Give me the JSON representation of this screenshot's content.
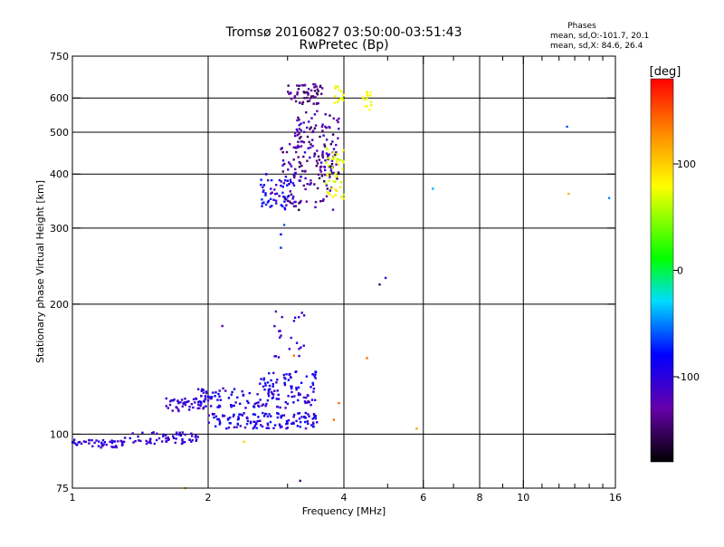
{
  "chart_data": {
    "type": "scatter",
    "title": "Tromsø 20160827 03:50:00-03:51:43",
    "subtitle": "RwPretec (Bp)",
    "xlabel": "Frequency [MHz]",
    "ylabel": "Stationary phase Virtual Height [km]",
    "x_scale": "log",
    "y_scale": "log",
    "xlim": [
      1,
      16
    ],
    "ylim": [
      75,
      750
    ],
    "x_ticks": [
      1,
      2,
      4,
      6,
      8,
      10,
      16
    ],
    "x_minor_ticks": [
      3,
      5,
      7,
      9,
      11,
      12,
      13,
      14,
      15
    ],
    "y_ticks": [
      75,
      100,
      200,
      300,
      400,
      500,
      600,
      750
    ],
    "x_gridlines": [
      2,
      4,
      6,
      8,
      10
    ],
    "y_gridlines": [
      100,
      200,
      300,
      400,
      500,
      600
    ],
    "phase_info": {
      "heading": "Phases",
      "line_o": "mean, sd,O:-101.7, 20.1",
      "line_x": "mean, sd,X: 84.6, 26.4"
    },
    "colorbar": {
      "label": "[deg]",
      "ticks": [
        100,
        0,
        -100
      ],
      "range": [
        -180,
        180
      ]
    },
    "clusters": [
      {
        "x": [
          1.0,
          1.3
        ],
        "y": [
          93,
          97
        ],
        "phase": [
          -120,
          -90
        ],
        "n": 45
      },
      {
        "x": [
          1.3,
          1.9
        ],
        "y": [
          95,
          101
        ],
        "phase": [
          -120,
          -90
        ],
        "n": 60
      },
      {
        "x": [
          1.6,
          2.0
        ],
        "y": [
          113,
          121
        ],
        "phase": [
          -120,
          -95
        ],
        "n": 45
      },
      {
        "x": [
          2.0,
          3.5
        ],
        "y": [
          103,
          112
        ],
        "phase": [
          -120,
          -70
        ],
        "n": 130
      },
      {
        "x": [
          1.9,
          3.5
        ],
        "y": [
          115,
          128
        ],
        "phase": [
          -120,
          -80
        ],
        "n": 120
      },
      {
        "x": [
          2.6,
          3.5
        ],
        "y": [
          128,
          140
        ],
        "phase": [
          -110,
          -70
        ],
        "n": 45
      },
      {
        "x": [
          2.8,
          3.3
        ],
        "y": [
          150,
          195
        ],
        "phase": [
          -120,
          -100
        ],
        "n": 22
      },
      {
        "x": [
          2.6,
          3.1
        ],
        "y": [
          330,
          400
        ],
        "phase": [
          -120,
          -70
        ],
        "n": 60
      },
      {
        "x": [
          2.9,
          3.8
        ],
        "y": [
          330,
          470
        ],
        "phase": [
          -160,
          -100
        ],
        "n": 90
      },
      {
        "x": [
          3.0,
          3.6
        ],
        "y": [
          580,
          650
        ],
        "phase": [
          -160,
          -120
        ],
        "n": 55
      },
      {
        "x": [
          3.1,
          3.9
        ],
        "y": [
          390,
          560
        ],
        "phase": [
          -160,
          -100
        ],
        "n": 110
      },
      {
        "x": [
          3.65,
          4.0
        ],
        "y": [
          350,
          460
        ],
        "phase": [
          60,
          90
        ],
        "n": 45
      },
      {
        "x": [
          3.8,
          4.0
        ],
        "y": [
          580,
          640
        ],
        "phase": [
          60,
          90
        ],
        "n": 14
      },
      {
        "x": [
          4.4,
          4.6
        ],
        "y": [
          560,
          620
        ],
        "phase": [
          70,
          90
        ],
        "n": 14
      }
    ],
    "points": [
      {
        "x": 2.9,
        "y": 290,
        "phase": -80
      },
      {
        "x": 2.9,
        "y": 270,
        "phase": -70
      },
      {
        "x": 2.95,
        "y": 305,
        "phase": -60
      },
      {
        "x": 4.8,
        "y": 222,
        "phase": -150
      },
      {
        "x": 4.95,
        "y": 230,
        "phase": -110
      },
      {
        "x": 4.5,
        "y": 150,
        "phase": 140
      },
      {
        "x": 2.15,
        "y": 178,
        "phase": -120
      },
      {
        "x": 3.9,
        "y": 118,
        "phase": 140
      },
      {
        "x": 3.8,
        "y": 108,
        "phase": 140
      },
      {
        "x": 5.8,
        "y": 103,
        "phase": 120
      },
      {
        "x": 6.3,
        "y": 370,
        "phase": -40
      },
      {
        "x": 12.5,
        "y": 515,
        "phase": -60
      },
      {
        "x": 12.6,
        "y": 360,
        "phase": 110
      },
      {
        "x": 15.5,
        "y": 352,
        "phase": -50
      },
      {
        "x": 3.2,
        "y": 78,
        "phase": -150
      },
      {
        "x": 1.78,
        "y": 75,
        "phase": 120
      },
      {
        "x": 2.4,
        "y": 96,
        "phase": 100
      },
      {
        "x": 3.1,
        "y": 152,
        "phase": 140
      }
    ]
  }
}
